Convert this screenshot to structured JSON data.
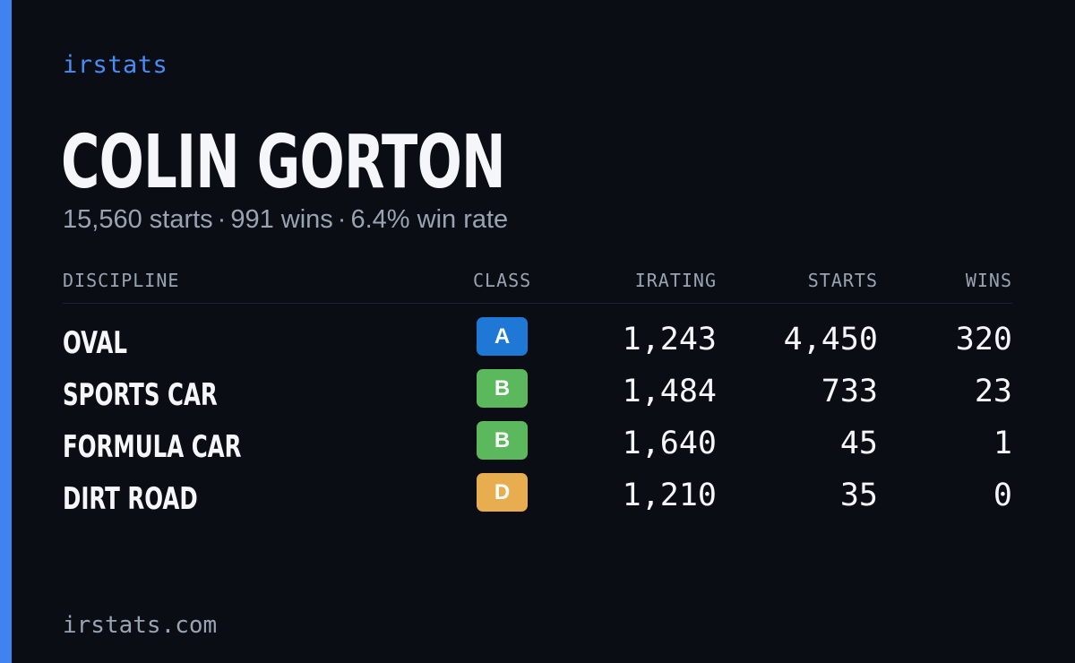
{
  "brand": "irstats",
  "driver": {
    "name": "COLIN GORTON",
    "starts_text": "15,560 starts",
    "wins_text": "991 wins",
    "win_rate_text": "6.4% win rate",
    "separator": "·"
  },
  "table": {
    "headers": {
      "discipline": "DISCIPLINE",
      "class": "CLASS",
      "irating": "IRATING",
      "starts": "STARTS",
      "wins": "WINS"
    },
    "rows": [
      {
        "discipline": "OVAL",
        "class": "A",
        "class_color": "#1f77d6",
        "irating": "1,243",
        "starts": "4,450",
        "wins": "320"
      },
      {
        "discipline": "SPORTS CAR",
        "class": "B",
        "class_color": "#5cb85c",
        "irating": "1,484",
        "starts": "733",
        "wins": "23"
      },
      {
        "discipline": "FORMULA CAR",
        "class": "B",
        "class_color": "#5cb85c",
        "irating": "1,640",
        "starts": "45",
        "wins": "1"
      },
      {
        "discipline": "DIRT ROAD",
        "class": "D",
        "class_color": "#e8ad4f",
        "irating": "1,210",
        "starts": "35",
        "wins": "0"
      }
    ]
  },
  "footer": "irstats.com",
  "colors": {
    "background": "#0a0d14",
    "accent": "#3f82f0",
    "brand": "#4a8cf5",
    "text_primary": "#f4f6fa",
    "text_muted": "#9aa3b2"
  }
}
